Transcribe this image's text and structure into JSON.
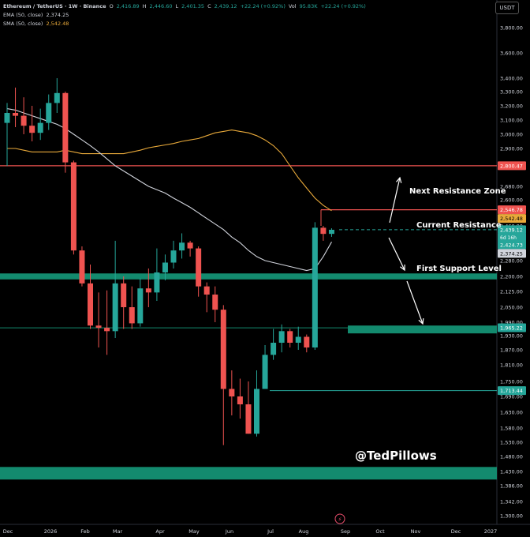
{
  "header": {
    "symbol": "Ethereum / TetherUS · 1W · Binance",
    "ohlc": [
      {
        "label": "O",
        "value": "2,416.89"
      },
      {
        "label": "H",
        "value": "2,446.60"
      },
      {
        "label": "L",
        "value": "2,401.35"
      },
      {
        "label": "C",
        "value": "2,439.12"
      }
    ],
    "change": "+22.24 (+0.92%)",
    "volume_label": "Vol",
    "volume": "95.83K",
    "volume_change": "+22.24 (+0.92%)",
    "ema_label": "EMA (50, close)",
    "ema_value": "2,374.25",
    "sma_label": "SMA (50, close)",
    "sma_value": "2,542.48",
    "currency": "USDT"
  },
  "annotations": {
    "next_resistance": "Next Resistance Zone",
    "current_resistance": "Current Resistance",
    "first_support": "First Support Level",
    "handle": "@TedPillows"
  },
  "colors": {
    "up": "#26a69a",
    "down": "#ef5350",
    "ema": "#d1d4dc",
    "sma": "#e8a93a",
    "resistance_line": "#ef5350",
    "support_zone": "#138a6e",
    "background": "#000000"
  },
  "chart_data": {
    "type": "candlestick",
    "timeframe": "1W",
    "ylim": [
      1290,
      3900
    ],
    "y_ticks": [
      3800,
      3600,
      3400,
      3300,
      3200,
      3100,
      3000,
      2900,
      2800,
      2680,
      2600,
      2520,
      2460,
      2350,
      2280,
      2200,
      2125,
      2050,
      1990,
      1930,
      1870,
      1810,
      1750,
      1690,
      1630,
      1580,
      1530,
      1480,
      1430,
      1386,
      1342,
      1300
    ],
    "x_labels": [
      "Dec",
      "2026",
      "Feb",
      "Mar",
      "Apr",
      "May",
      "Jun",
      "Jul",
      "Aug",
      "Sep",
      "Oct",
      "Nov",
      "Dec",
      "2027"
    ],
    "candles": [
      {
        "o": 3080,
        "h": 3220,
        "l": 2800,
        "c": 3150
      },
      {
        "o": 3150,
        "h": 3330,
        "l": 3050,
        "c": 3130
      },
      {
        "o": 3130,
        "h": 3260,
        "l": 3000,
        "c": 3060
      },
      {
        "o": 3060,
        "h": 3200,
        "l": 2950,
        "c": 3010
      },
      {
        "o": 3010,
        "h": 3180,
        "l": 2960,
        "c": 3080
      },
      {
        "o": 3080,
        "h": 3280,
        "l": 3030,
        "c": 3220
      },
      {
        "o": 3220,
        "h": 3400,
        "l": 3150,
        "c": 3290
      },
      {
        "o": 3290,
        "h": 3300,
        "l": 2760,
        "c": 2820
      },
      {
        "o": 2820,
        "h": 2830,
        "l": 2310,
        "c": 2330
      },
      {
        "o": 2330,
        "h": 2350,
        "l": 2150,
        "c": 2165
      },
      {
        "o": 2165,
        "h": 2260,
        "l": 1960,
        "c": 1975
      },
      {
        "o": 1975,
        "h": 2120,
        "l": 1880,
        "c": 1965
      },
      {
        "o": 1965,
        "h": 2130,
        "l": 1850,
        "c": 1950
      },
      {
        "o": 1950,
        "h": 2380,
        "l": 1920,
        "c": 2165
      },
      {
        "o": 2165,
        "h": 2200,
        "l": 1960,
        "c": 2050
      },
      {
        "o": 2050,
        "h": 2150,
        "l": 1960,
        "c": 1985
      },
      {
        "o": 1985,
        "h": 2190,
        "l": 1970,
        "c": 2140
      },
      {
        "o": 2140,
        "h": 2240,
        "l": 2050,
        "c": 2120
      },
      {
        "o": 2120,
        "h": 2340,
        "l": 2080,
        "c": 2220
      },
      {
        "o": 2220,
        "h": 2310,
        "l": 2180,
        "c": 2270
      },
      {
        "o": 2270,
        "h": 2380,
        "l": 2240,
        "c": 2330
      },
      {
        "o": 2330,
        "h": 2420,
        "l": 2290,
        "c": 2370
      },
      {
        "o": 2370,
        "h": 2380,
        "l": 2300,
        "c": 2340
      },
      {
        "o": 2340,
        "h": 2350,
        "l": 2100,
        "c": 2150
      },
      {
        "o": 2150,
        "h": 2170,
        "l": 2030,
        "c": 2110
      },
      {
        "o": 2110,
        "h": 2150,
        "l": 1990,
        "c": 2040
      },
      {
        "o": 2040,
        "h": 2060,
        "l": 1520,
        "c": 1720
      },
      {
        "o": 1720,
        "h": 1790,
        "l": 1620,
        "c": 1690
      },
      {
        "o": 1690,
        "h": 1760,
        "l": 1610,
        "c": 1660
      },
      {
        "o": 1660,
        "h": 1750,
        "l": 1560,
        "c": 1560
      },
      {
        "o": 1560,
        "h": 1790,
        "l": 1550,
        "c": 1720
      },
      {
        "o": 1720,
        "h": 1890,
        "l": 1720,
        "c": 1850
      },
      {
        "o": 1850,
        "h": 1960,
        "l": 1830,
        "c": 1900
      },
      {
        "o": 1900,
        "h": 1980,
        "l": 1860,
        "c": 1950
      },
      {
        "o": 1950,
        "h": 1960,
        "l": 1880,
        "c": 1900
      },
      {
        "o": 1900,
        "h": 1970,
        "l": 1870,
        "c": 1925
      },
      {
        "o": 1925,
        "h": 1935,
        "l": 1860,
        "c": 1880
      },
      {
        "o": 1880,
        "h": 2480,
        "l": 1870,
        "c": 2450
      },
      {
        "o": 2450,
        "h": 2460,
        "l": 2380,
        "c": 2417
      },
      {
        "o": 2417,
        "h": 2447,
        "l": 2401,
        "c": 2439
      }
    ],
    "ema_50": [
      3180,
      3170,
      3150,
      3130,
      3110,
      3090,
      3070,
      3040,
      3000,
      2960,
      2920,
      2880,
      2840,
      2800,
      2770,
      2740,
      2710,
      2680,
      2660,
      2640,
      2610,
      2585,
      2560,
      2530,
      2500,
      2470,
      2440,
      2400,
      2370,
      2330,
      2300,
      2280,
      2270,
      2260,
      2250,
      2240,
      2230,
      2240,
      2300,
      2374
    ],
    "sma_50": [
      2900,
      2900,
      2890,
      2880,
      2880,
      2880,
      2880,
      2890,
      2880,
      2870,
      2870,
      2870,
      2870,
      2870,
      2870,
      2880,
      2890,
      2905,
      2915,
      2925,
      2935,
      2950,
      2960,
      2970,
      2990,
      3010,
      3020,
      3030,
      3020,
      3010,
      2990,
      2960,
      2920,
      2870,
      2800,
      2730,
      2670,
      2610,
      2570,
      2542
    ],
    "levels": [
      {
        "price": 2800.47,
        "label": "2,800.47",
        "kind": "resistance"
      },
      {
        "price": 2546.78,
        "label": "2,546.78",
        "kind": "current resistance"
      },
      {
        "price": 2542.48,
        "label": "2,542.48",
        "kind": "SMA"
      },
      {
        "price": 2439.12,
        "label": "2,439.12",
        "kind": "last price"
      },
      {
        "price": 2424.73,
        "label": "2,424.73",
        "kind": "price"
      },
      {
        "price": 2374.25,
        "label": "2,374.25",
        "kind": "EMA"
      },
      {
        "price": 1965.22,
        "label": "1,965.22",
        "kind": "support"
      },
      {
        "price": 1713.44,
        "label": "1,713.44",
        "kind": "support"
      }
    ],
    "countdown": "6d 16h",
    "support_zones": [
      {
        "low": 2185,
        "high": 2215
      },
      {
        "low": 1940,
        "high": 1975
      },
      {
        "low": 1405,
        "high": 1445
      }
    ]
  }
}
